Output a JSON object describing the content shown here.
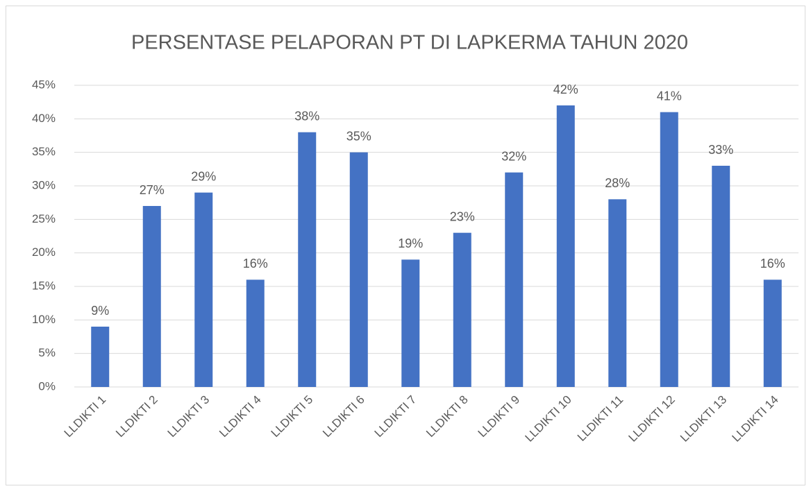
{
  "chart_data": {
    "type": "bar",
    "title": "PERSENTASE PELAPORAN PT DI LAPKERMA TAHUN 2020",
    "categories": [
      "LLDIKTI 1",
      "LLDIKTI 2",
      "LLDIKTI 3",
      "LLDIKTI 4",
      "LLDIKTI 5",
      "LLDIKTI 6",
      "LLDIKTI 7",
      "LLDIKTI 8",
      "LLDIKTI 9",
      "LLDIKTI 10",
      "LLDIKTI 11",
      "LLDIKTI 12",
      "LLDIKTI 13",
      "LLDIKTI 14"
    ],
    "values": [
      9,
      27,
      29,
      16,
      38,
      35,
      19,
      23,
      32,
      42,
      28,
      41,
      33,
      16
    ],
    "value_labels": [
      "9%",
      "27%",
      "29%",
      "16%",
      "38%",
      "35%",
      "19%",
      "23%",
      "32%",
      "42%",
      "28%",
      "41%",
      "33%",
      "16%"
    ],
    "color": "#4472c4",
    "ylim": [
      0,
      45
    ],
    "yticks": [
      {
        "value": 0,
        "label": "0%"
      },
      {
        "value": 5,
        "label": "5%"
      },
      {
        "value": 10,
        "label": "10%"
      },
      {
        "value": 15,
        "label": "15%"
      },
      {
        "value": 20,
        "label": "20%"
      },
      {
        "value": 25,
        "label": "25%"
      },
      {
        "value": 30,
        "label": "30%"
      },
      {
        "value": 35,
        "label": "35%"
      },
      {
        "value": 40,
        "label": "40%"
      },
      {
        "value": 45,
        "label": "45%"
      }
    ],
    "grid": true
  }
}
